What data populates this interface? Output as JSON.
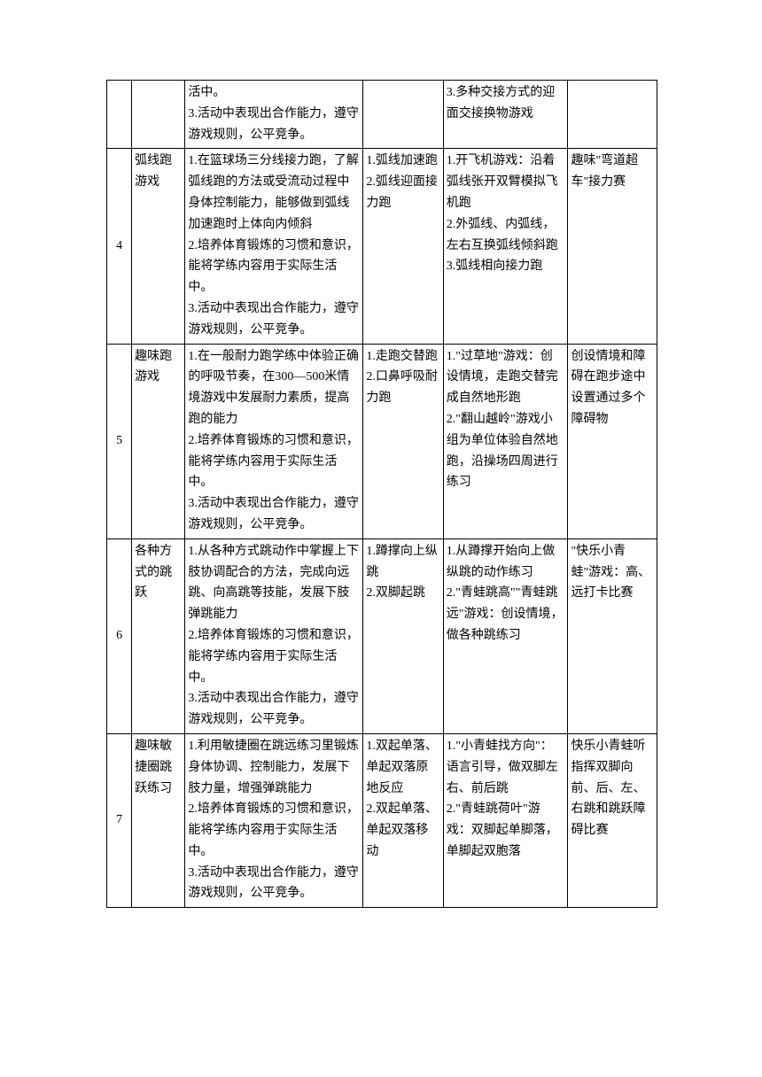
{
  "table": {
    "border_color": "#000000",
    "font_size": 14,
    "rows": [
      {
        "num": "",
        "title": "",
        "objectives": "活中。\n3.活动中表现出合作能力，遵守游戏规则，公平竞争。",
        "key_points": "",
        "activities": "3.多种交接方式的迎面交接换物游戏",
        "extra": ""
      },
      {
        "num": "4",
        "title": "弧线跑游戏",
        "objectives": "1.在篮球场三分线接力跑，了解弧线跑的方法或受流动过程中身体控制能力，能够做到弧线加速跑时上体向内倾斜\n2.培养体育锻炼的习惯和意识，能将学练内容用于实际生活中。\n3.活动中表现出合作能力，遵守游戏规则，公平竞争。",
        "key_points": "1.弧线加速跑\n2.弧线迎面接力跑",
        "activities": "1.开飞机游戏：沿着弧线张开双臂模拟飞机跑\n2.外弧线、内弧线，左右互换弧线倾斜跑\n3.弧线相向接力跑",
        "extra": "趣味\"弯道超车\"接力赛"
      },
      {
        "num": "5",
        "title": "趣味跑游戏",
        "objectives": "1.在一般耐力跑学练中体验正确的呼吸节奏，在300—500米情境游戏中发展耐力素质，提高跑的能力\n2.培养体育锻炼的习惯和意识，能将学练内容用于实际生活中。\n3.活动中表现出合作能力，遵守游戏规则，公平竞争。",
        "key_points": "1.走跑交替跑\n2.口鼻呼吸耐力跑",
        "activities": "1.\"过草地\"游戏：创设情境，走跑交替完成自然地形跑\n2.\"翻山越岭\"游戏小组为单位体验自然地跑，沿操场四周进行练习",
        "extra": "创设情境和障碍在跑步途中设置通过多个障碍物"
      },
      {
        "num": "6",
        "title": "各种方式的跳跃",
        "objectives": "1.从各种方式跳动作中掌握上下肢协调配合的方法，完成向远跳、向高跳等技能，发展下肢弹跳能力\n2.培养体育锻炼的习惯和意识，能将学练内容用于实际生活中。\n3.活动中表现出合作能力，遵守游戏规则，公平竞争。",
        "key_points": "1.蹲撑向上纵跳\n2.双脚起跳",
        "activities": "1.从蹲撑开始向上做纵跳的动作练习\n2.\"青蛙跳高\"\"青蛙跳远\"游戏：创设情境，做各种跳练习",
        "extra": "\"快乐小青蛙\"游戏：高、远打卡比赛"
      },
      {
        "num": "7",
        "title": "趣味敏捷圈跳跃练习",
        "objectives": "1.利用敏捷圈在跳远练习里锻炼身体协调、控制能力，发展下肢力量，增强弹跳能力\n2.培养体育锻炼的习惯和意识，能将学练内容用于实际生活中。\n3.活动中表现出合作能力，遵守游戏规则，公平竞争。",
        "key_points": "1.双起单落、单起双落原地反应\n2.双起单落、单起双落移动",
        "activities": "1.\"小青蛙找方向\"：语言引导，做双脚左右、前后跳\n2.\"青蛙跳荷叶\"游戏：双脚起单脚落，单脚起双胞落",
        "extra": "快乐小青蛙听指挥双脚向前、后、左、右跳和跳跃障碍比赛"
      }
    ]
  }
}
